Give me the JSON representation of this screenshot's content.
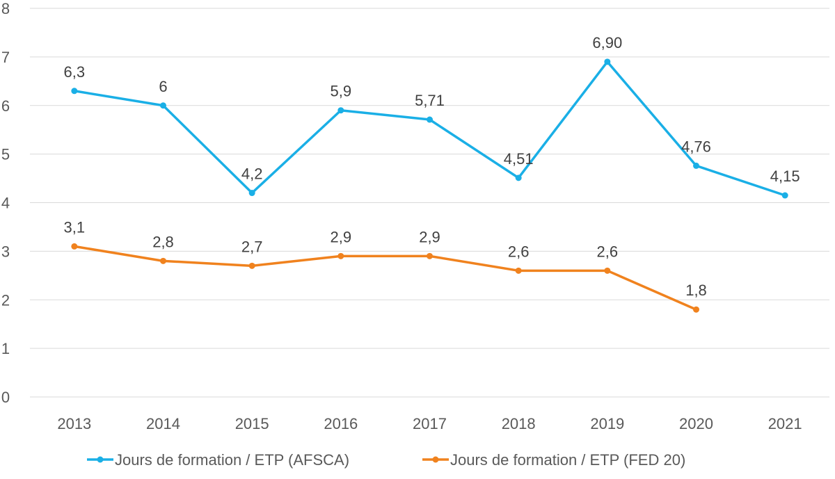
{
  "chart_data": {
    "type": "line",
    "title": "",
    "xlabel": "",
    "ylabel": "",
    "categories": [
      "2013",
      "2014",
      "2015",
      "2016",
      "2017",
      "2018",
      "2019",
      "2020",
      "2021"
    ],
    "ylim": [
      0,
      8
    ],
    "yticks": [
      "0",
      "1",
      "2",
      "3",
      "4",
      "5",
      "6",
      "7",
      "8"
    ],
    "grid": true,
    "legend_position": "bottom",
    "series": [
      {
        "name": "Jours de formation / ETP (AFSCA)",
        "color": "#1aafe6",
        "values": [
          6.3,
          6,
          4.2,
          5.9,
          5.71,
          4.51,
          6.9,
          4.76,
          4.15
        ],
        "labels": [
          "6,3",
          "6",
          "4,2",
          "5,9",
          "5,71",
          "4,51",
          "6,90",
          "4,76",
          "4,15"
        ]
      },
      {
        "name": "Jours de formation / ETP (FED 20)",
        "color": "#f0821e",
        "values": [
          3.1,
          2.8,
          2.7,
          2.9,
          2.9,
          2.6,
          2.6,
          1.8,
          null
        ],
        "labels": [
          "3,1",
          "2,8",
          "2,7",
          "2,9",
          "2,9",
          "2,6",
          "2,6",
          "1,8",
          ""
        ]
      }
    ]
  }
}
